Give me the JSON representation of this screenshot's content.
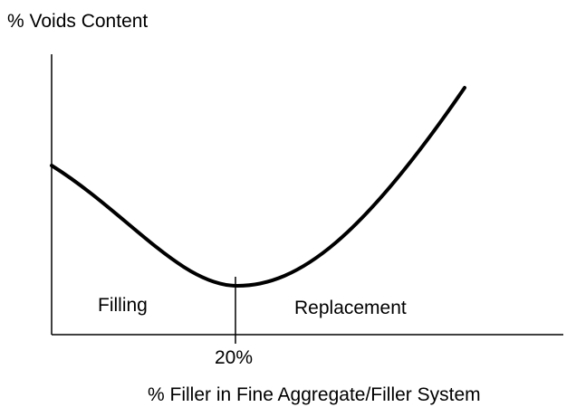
{
  "y_axis_label": "% Voids Content",
  "x_axis_label": "% Filler in Fine Aggregate/Filler System",
  "marker_label": "20%",
  "regions": [
    "Filling",
    "Replacement"
  ]
}
